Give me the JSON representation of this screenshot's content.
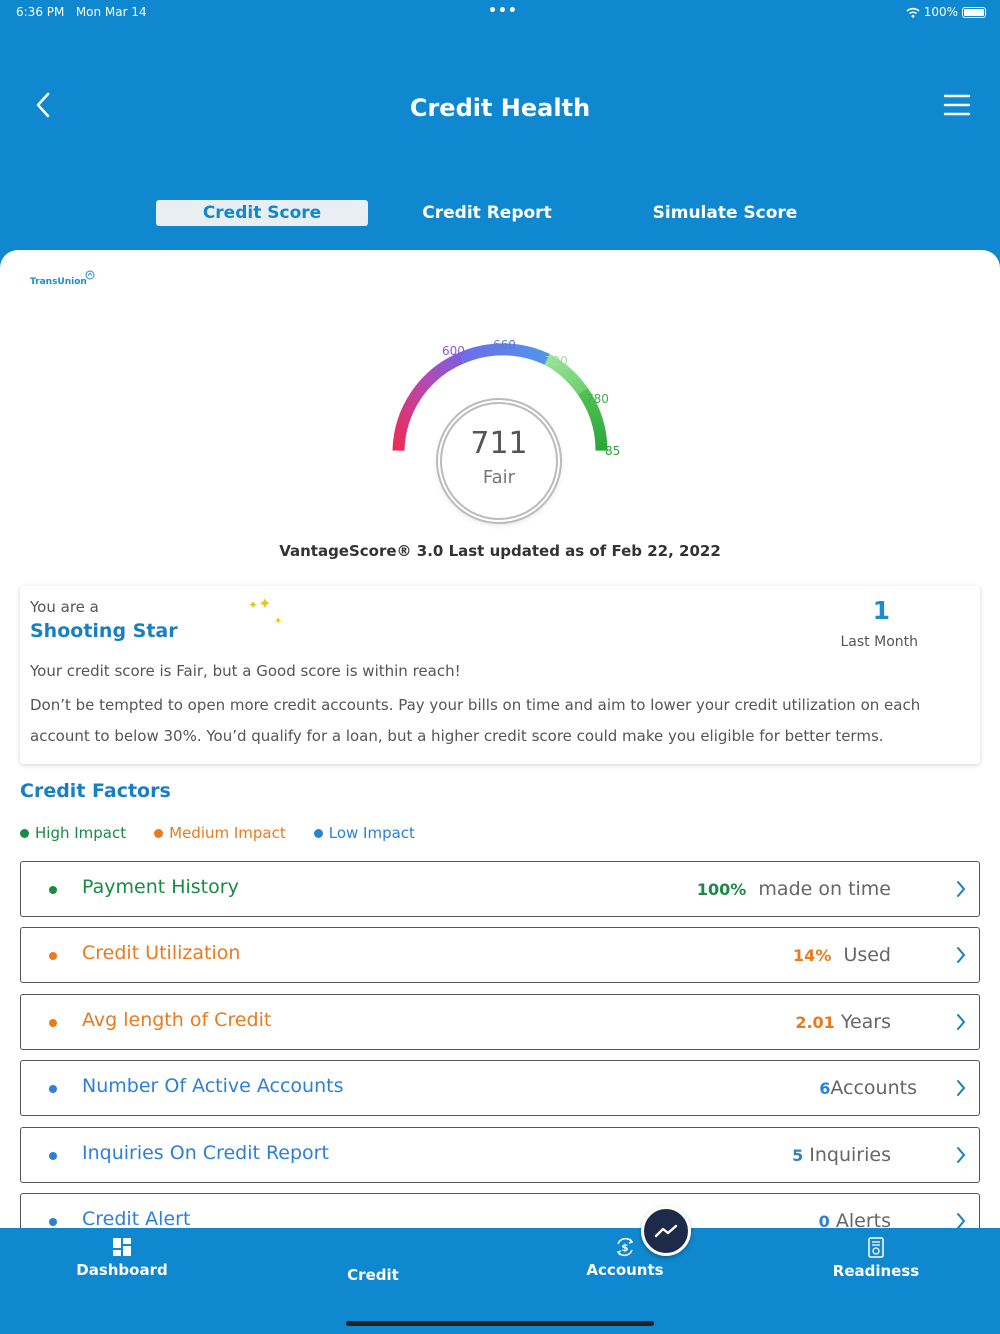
{
  "status": {
    "time": "6:36 PM",
    "date": "Mon Mar 14",
    "battery": "100%"
  },
  "header": {
    "title": "Credit Health"
  },
  "tabs": [
    {
      "label": "Credit Score",
      "active": true
    },
    {
      "label": "Credit Report",
      "active": false
    },
    {
      "label": "Simulate Score",
      "active": false
    }
  ],
  "bureau": {
    "name": "TransUnion"
  },
  "gauge": {
    "ticks": [
      "600",
      "660",
      "720",
      "780",
      "850"
    ],
    "score": "711",
    "rating": "Fair",
    "updated": "VantageScore® 3.0 Last updated as of Feb 22, 2022"
  },
  "insight": {
    "prefix": "You are a",
    "rank": "Shooting Star",
    "count": "1",
    "period": "Last Month",
    "line1": "Your credit score is Fair, but a Good score is within reach!",
    "line2": "Don’t be tempted to open more credit accounts. Pay your bills on time and aim to lower your credit utilization on each account to below 30%. You’d qualify for a loan, but a higher credit score could make you eligible for better terms."
  },
  "factors": {
    "title": "Credit Factors",
    "legend": [
      {
        "label": "High Impact",
        "color": "#1a8a45"
      },
      {
        "label": "Medium Impact",
        "color": "#ea7a1e"
      },
      {
        "label": "Low Impact",
        "color": "#2d7fd8"
      }
    ],
    "items": [
      {
        "name": "Payment History",
        "value": "100%",
        "unit": "made on time",
        "color": "#1a8a45"
      },
      {
        "name": "Credit Utilization",
        "value": "14%",
        "unit": "Used",
        "color": "#ea7a1e"
      },
      {
        "name": "Avg length of Credit",
        "value": "2.01",
        "unit": "Years",
        "color": "#ea7a1e"
      },
      {
        "name": "Number Of Active Accounts",
        "value": "6",
        "unit": "Accounts",
        "color": "#2d7fd8"
      },
      {
        "name": "Inquiries On Credit Report",
        "value": "5",
        "unit": "Inquiries",
        "color": "#2d7fd8"
      },
      {
        "name": "Credit Alert",
        "value": "0",
        "unit": "Alerts",
        "color": "#2d7fd8"
      }
    ]
  },
  "nav": [
    {
      "label": "Dashboard",
      "icon": "dashboard-icon"
    },
    {
      "label": "Credit",
      "icon": "trend-icon"
    },
    {
      "label": "Accounts",
      "icon": "dollar-cycle-icon"
    },
    {
      "label": "Readiness",
      "icon": "document-icon"
    }
  ],
  "colors": {
    "brand": "#0f88cf",
    "fab": "#1d2a4a"
  }
}
